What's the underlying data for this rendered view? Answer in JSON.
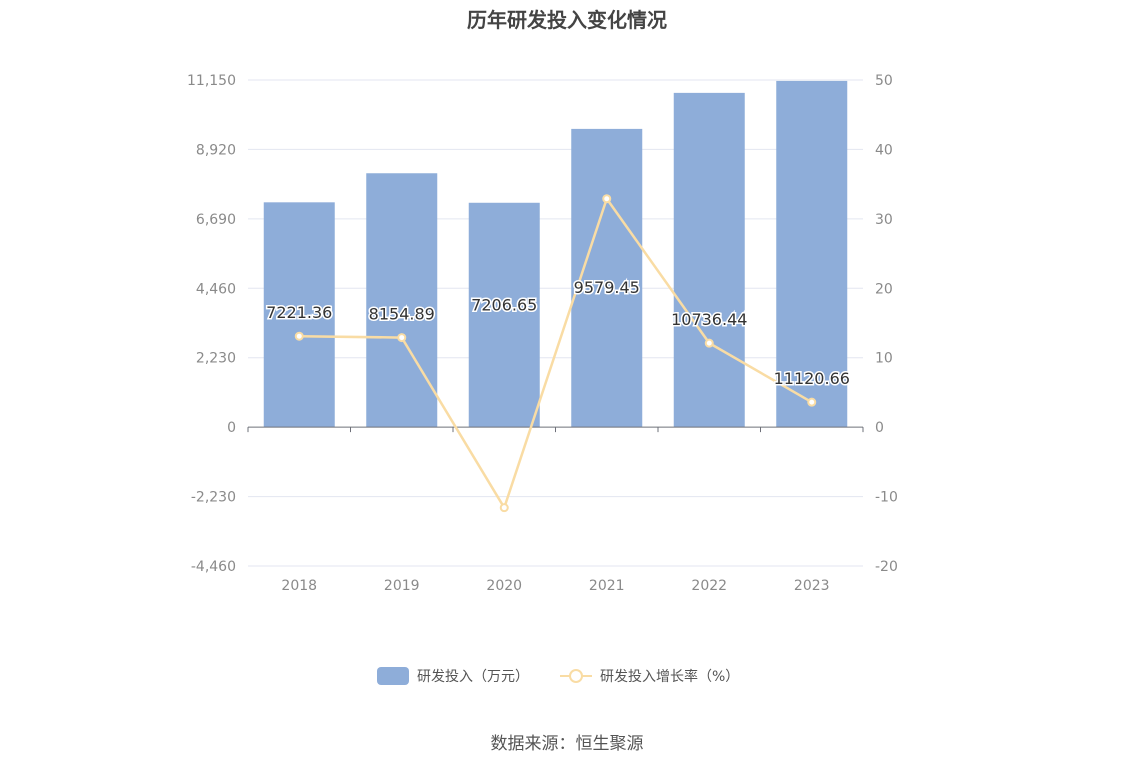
{
  "chart_data": {
    "type": "bar",
    "title": "历年研发投入变化情况",
    "categories": [
      "2018",
      "2019",
      "2020",
      "2021",
      "2022",
      "2023"
    ],
    "series": [
      {
        "name": "研发投入（万元）",
        "type": "bar",
        "axis": "left",
        "color": "#8eadd9",
        "values": [
          7221.36,
          8154.89,
          7206.65,
          9579.45,
          10736.44,
          11120.66
        ],
        "labels": [
          "7221.36",
          "8154.89",
          "7206.65",
          "9579.45",
          "10736.44",
          "11120.66"
        ]
      },
      {
        "name": "研发投入增长率（%）",
        "type": "line",
        "axis": "right",
        "color": "#f9dca4",
        "values": [
          13.1,
          12.9,
          -11.6,
          32.9,
          12.1,
          3.6
        ]
      }
    ],
    "y_left": {
      "ylim": [
        -4460,
        11150
      ],
      "ticks": [
        "11,150",
        "8,920",
        "6,690",
        "4,460",
        "2,230",
        "0",
        "-2,230",
        "-4,460"
      ]
    },
    "y_right": {
      "ylim": [
        -20,
        50
      ],
      "ticks": [
        "50",
        "40",
        "30",
        "20",
        "10",
        "0",
        "-10",
        "-20"
      ]
    },
    "grid": true,
    "legend": "bottom-center"
  },
  "source_text": "数据来源：恒生聚源"
}
